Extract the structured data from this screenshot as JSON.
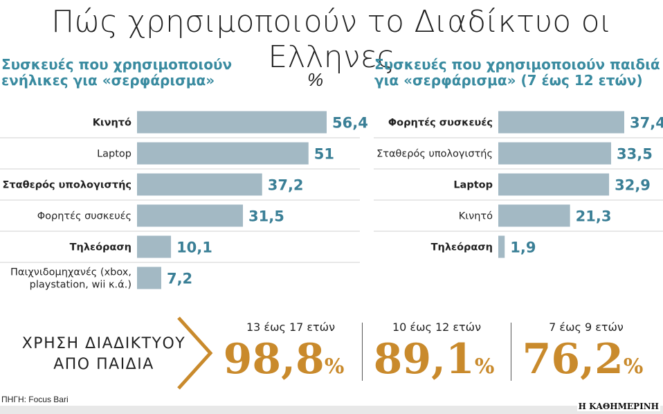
{
  "title": "Πώς χρησιμοποιούν το Διαδίκτυο οι Ελληνες",
  "chart_data": [
    {
      "type": "bar",
      "orientation": "horizontal",
      "title_line1": "Συσκευές που χρησιμοποιούν",
      "title_line2": "ενήλικες για «σερφάρισμα»",
      "unit": "%",
      "categories": [
        "Κινητό",
        "Laptop",
        "Σταθερός υπολογιστής",
        "Φορητές συσκευές",
        "Τηλεόραση",
        "Παιχνιδομηχανές (xbox, playstation, wii κ.ά.)"
      ],
      "category_lines": [
        [
          "Κινητό"
        ],
        [
          "Laptop"
        ],
        [
          "Σταθερός υπολογιστής"
        ],
        [
          "Φορητές συσκευές"
        ],
        [
          "Τηλεόραση"
        ],
        [
          "Παιχνιδομηχανές (xbox,",
          "playstation, wii κ.ά.)"
        ]
      ],
      "bold": [
        true,
        false,
        true,
        false,
        true,
        false
      ],
      "values": [
        56.4,
        51,
        37.2,
        31.5,
        10.1,
        7.2
      ],
      "labels": [
        "56,4",
        "51",
        "37,2",
        "31,5",
        "10,1",
        "7,2"
      ]
    },
    {
      "type": "bar",
      "orientation": "horizontal",
      "title_line1": "Συσκευές που χρησιμοποιούν παιδιά",
      "title_line2": "για «σερφάρισμα» (7 έως 12 ετών)",
      "categories": [
        "Φορητές συσκευές",
        "Σταθερός υπολογιστής",
        "Laptop",
        "Κινητό",
        "Τηλεόραση"
      ],
      "category_lines": [
        [
          "Φορητές συσκευές"
        ],
        [
          "Σταθερός υπολογιστής"
        ],
        [
          "Laptop"
        ],
        [
          "Κινητό"
        ],
        [
          "Τηλεόραση"
        ]
      ],
      "bold": [
        true,
        false,
        true,
        false,
        true
      ],
      "values": [
        37.4,
        33.5,
        32.9,
        21.3,
        1.9
      ],
      "labels": [
        "37,4",
        "33,5",
        "32,9",
        "21,3",
        "1,9"
      ]
    }
  ],
  "usage": {
    "label_line1": "ΧΡΗΣΗ ΔΙΑΔΙΚΤΥΟΥ",
    "label_line2": "ΑΠΟ ΠΑΙΔΙΑ",
    "groups": [
      {
        "age": "13 έως 17 ετών",
        "value": "98,8",
        "unit": "%"
      },
      {
        "age": "10 έως 12 ετών",
        "value": "89,1",
        "unit": "%"
      },
      {
        "age": "7 έως 9 ετών",
        "value": "76,2",
        "unit": "%"
      }
    ]
  },
  "source": "ΠΗΓΗ: Focus Bari",
  "brand": "Η ΚΑΘΗΜΕΡΙΝΗ",
  "colors": {
    "bar": "#a3b9c4",
    "value": "#3a7f96",
    "heading": "#3a8ba0",
    "highlight": "#c98a2c"
  }
}
